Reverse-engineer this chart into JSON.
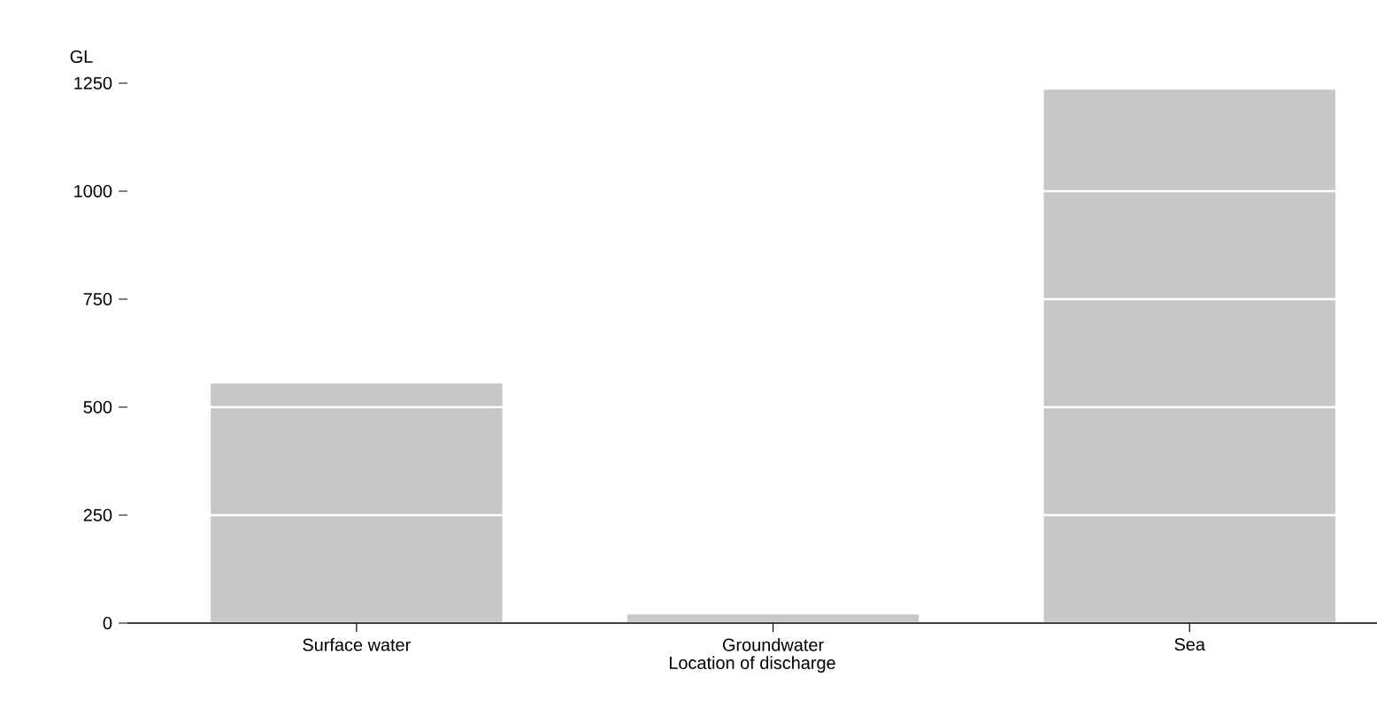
{
  "chart_data": {
    "type": "bar",
    "xlabel": "Location of discharge",
    "ylabel": "GL",
    "categories": [
      "Surface water",
      "Groundwater",
      "Sea"
    ],
    "values": [
      555,
      20,
      1235
    ],
    "color": "#c6c7c9",
    "ylim": [
      0,
      1250
    ],
    "yticks": [
      0,
      250,
      500,
      750,
      1000,
      1250
    ],
    "grid": "y"
  }
}
